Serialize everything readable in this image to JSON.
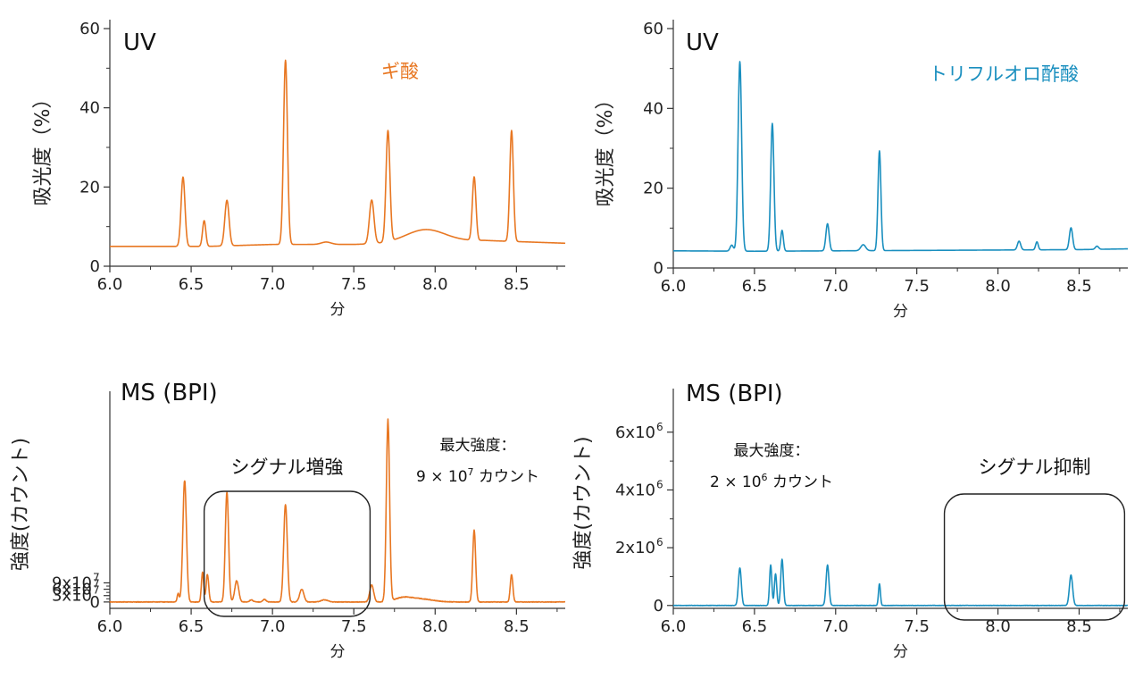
{
  "figure": {
    "x_unit_label": "分"
  },
  "chart_data": [
    {
      "type": "line",
      "panel_label": "UV",
      "series": [
        {
          "name": "ギ酸",
          "color": "#E87722",
          "peaks": [
            [
              6.45,
              17.5,
              0.012
            ],
            [
              6.58,
              6.5,
              0.01
            ],
            [
              6.72,
              11.5,
              0.013
            ],
            [
              7.08,
              46.5,
              0.012
            ],
            [
              7.33,
              0.6,
              0.03
            ],
            [
              7.61,
              11,
              0.014
            ],
            [
              7.71,
              28,
              0.012
            ],
            [
              7.94,
              3.2,
              0.12
            ],
            [
              8.24,
              16,
              0.011
            ],
            [
              8.47,
              28,
              0.011
            ]
          ]
        }
      ],
      "baseline": [
        [
          6.0,
          5.0
        ],
        [
          6.6,
          5.0
        ],
        [
          7.0,
          5.5
        ],
        [
          7.5,
          5.5
        ],
        [
          7.9,
          6.0
        ],
        [
          8.3,
          6.5
        ],
        [
          8.8,
          5.8
        ]
      ],
      "xlabel": "分",
      "ylabel": "吸光度（%）",
      "xlim": [
        6.0,
        8.8
      ],
      "ylim": [
        0,
        60
      ],
      "x_ticks": [
        "6.0",
        "6.5",
        "7.0",
        "7.5",
        "8.0",
        "8.5"
      ],
      "y_ticks": [
        "0",
        "20",
        "40",
        "60"
      ],
      "annotations": []
    },
    {
      "type": "line",
      "panel_label": "UV",
      "series": [
        {
          "name": "トリフルオロ酢酸",
          "color": "#1A8FBF",
          "peaks": [
            [
              6.36,
              1.5,
              0.01
            ],
            [
              6.41,
              47.5,
              0.011
            ],
            [
              6.61,
              32,
              0.01
            ],
            [
              6.67,
              5.2,
              0.008
            ],
            [
              6.95,
              6.8,
              0.01
            ],
            [
              7.17,
              1.5,
              0.015
            ],
            [
              7.27,
              25,
              0.009
            ],
            [
              8.13,
              2.2,
              0.01
            ],
            [
              8.24,
              2,
              0.008
            ],
            [
              8.45,
              5.5,
              0.01
            ],
            [
              8.61,
              0.8,
              0.01
            ]
          ]
        }
      ],
      "baseline": [
        [
          6.0,
          4.3
        ],
        [
          6.5,
          4.2
        ],
        [
          7.0,
          4.3
        ],
        [
          7.5,
          4.4
        ],
        [
          8.0,
          4.5
        ],
        [
          8.5,
          4.6
        ],
        [
          8.8,
          4.8
        ]
      ],
      "xlabel": "分",
      "ylabel": "吸光度（%）",
      "xlim": [
        6.0,
        8.8
      ],
      "ylim": [
        0,
        60
      ],
      "x_ticks": [
        "6.0",
        "6.5",
        "7.0",
        "7.5",
        "8.0",
        "8.5"
      ],
      "y_ticks": [
        "0",
        "20",
        "40",
        "60"
      ],
      "annotations": []
    },
    {
      "type": "line",
      "panel_label": "MS (BPI)",
      "series": [
        {
          "name": "",
          "color": "#E87722",
          "noise": 0.25,
          "peaks": [
            [
              6.42,
              4,
              0.006
            ],
            [
              6.46,
              57,
              0.011
            ],
            [
              6.57,
              14,
              0.007
            ],
            [
              6.6,
              13,
              0.008
            ],
            [
              6.72,
              52,
              0.01
            ],
            [
              6.78,
              10,
              0.012
            ],
            [
              6.87,
              1,
              0.01
            ],
            [
              6.95,
              1.2,
              0.01
            ],
            [
              7.08,
              46,
              0.011
            ],
            [
              7.18,
              6,
              0.013
            ],
            [
              7.32,
              1,
              0.02
            ],
            [
              7.61,
              8,
              0.012
            ],
            [
              7.71,
              85,
              0.01
            ],
            [
              7.8,
              1.6,
              0.05
            ],
            [
              7.9,
              1.5,
              0.08
            ],
            [
              8.24,
              34,
              0.009
            ],
            [
              8.47,
              13,
              0.008
            ]
          ]
        }
      ],
      "baseline": [
        [
          6.0,
          0
        ],
        [
          8.8,
          0
        ]
      ],
      "scale_exponent": 7,
      "xlabel": "分",
      "ylabel": "強度(カウント)",
      "xlim": [
        6.0,
        8.8
      ],
      "ylim": [
        -3,
        95
      ],
      "x_ticks": [
        "6.0",
        "6.5",
        "7.0",
        "7.5",
        "8.0",
        "8.5"
      ],
      "y_ticks": [
        "0",
        "3x10",
        "6x10",
        "9x10"
      ],
      "annotations": [
        {
          "id": "box",
          "text": "シグナル増強",
          "x_range": [
            6.58,
            7.6
          ]
        },
        {
          "id": "intensity",
          "text": "最大強度：",
          "text2_prefix": "9 × 10",
          "text2_exp": "7",
          "text2_suffix": " カウント"
        }
      ]
    },
    {
      "type": "line",
      "panel_label": "MS (BPI)",
      "series": [
        {
          "name": "",
          "color": "#1A8FBF",
          "noise": 0.012,
          "peaks": [
            [
              6.41,
              1.3,
              0.009
            ],
            [
              6.6,
              1.4,
              0.007
            ],
            [
              6.63,
              1.1,
              0.007
            ],
            [
              6.67,
              1.6,
              0.008
            ],
            [
              6.95,
              1.4,
              0.009
            ],
            [
              7.27,
              0.75,
              0.006
            ],
            [
              8.45,
              1.05,
              0.01
            ]
          ]
        }
      ],
      "baseline": [
        [
          6.0,
          0
        ],
        [
          8.8,
          0
        ]
      ],
      "scale_exponent": 6,
      "xlabel": "分",
      "ylabel": "強度(カウント)",
      "xlim": [
        6.0,
        8.8
      ],
      "ylim": [
        -0.1,
        7.2
      ],
      "x_ticks": [
        "6.0",
        "6.5",
        "7.0",
        "7.5",
        "8.0",
        "8.5"
      ],
      "y_ticks": [
        "0",
        "2x10",
        "4x10",
        "6x10"
      ],
      "annotations": [
        {
          "id": "box",
          "text": "シグナル抑制",
          "x_range": [
            7.67,
            8.78
          ]
        },
        {
          "id": "intensity",
          "text": "最大強度：",
          "text2_prefix": "2 × 10",
          "text2_exp": "6",
          "text2_suffix": " カウント"
        }
      ]
    }
  ]
}
